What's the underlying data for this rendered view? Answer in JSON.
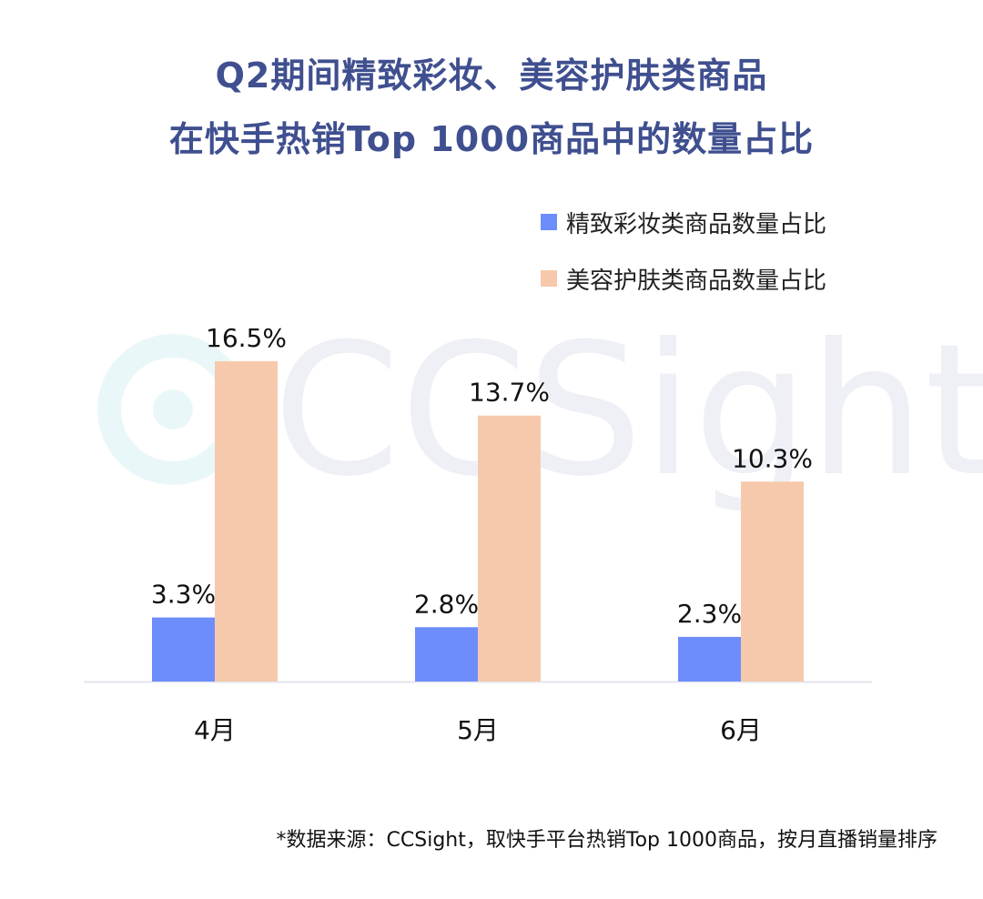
{
  "title_lines": [
    "Q2期间精致彩妆、美容护肤类商品",
    "在快手热销Top 1000商品中的数量占比"
  ],
  "watermark": {
    "text": "CCSight",
    "color": "#eef0f6",
    "ring_color": "#eaf7f8"
  },
  "source_note": "*数据来源：CCSight，取快手平台热销Top 1000商品，按月直播销量排序",
  "chart_data": {
    "type": "bar",
    "categories": [
      "4月",
      "5月",
      "6月"
    ],
    "series": [
      {
        "name": "精致彩妆类商品数量占比",
        "values": [
          3.3,
          2.8,
          2.3
        ],
        "labels": [
          "3.3%",
          "2.8%",
          "2.3%"
        ],
        "color": "#6d8dfb"
      },
      {
        "name": "美容护肤类商品数量占比",
        "values": [
          16.5,
          13.7,
          10.3
        ],
        "labels": [
          "16.5%",
          "13.7%",
          "10.3%"
        ],
        "color": "#f7c9ac"
      }
    ],
    "ylim": [
      0,
      16.5
    ],
    "grid": false,
    "legend": "top-right",
    "axis_color": "#e3e6ee"
  }
}
